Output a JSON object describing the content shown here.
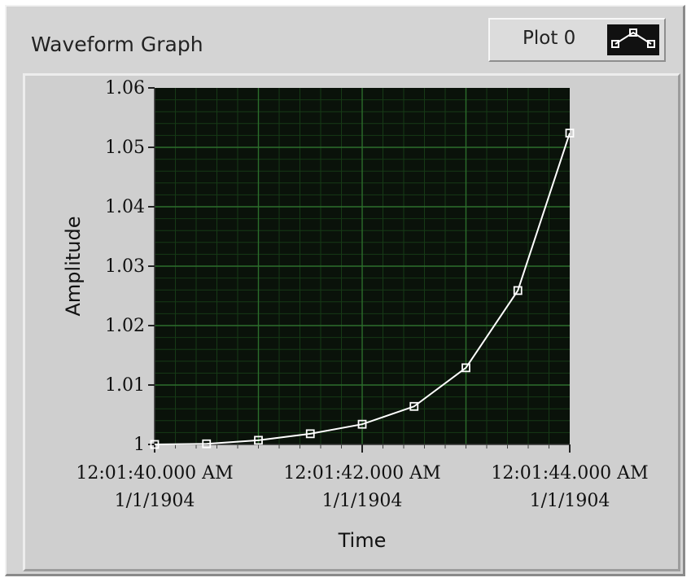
{
  "window": {
    "title": "Waveform Graph"
  },
  "legend": {
    "plot_label": "Plot 0",
    "icon": "line-with-square-markers-icon"
  },
  "colors": {
    "plot_background": "#0a120a",
    "grid_major": "#2c6e2c",
    "grid_minor": "#163a16",
    "series_line": "#ffffff",
    "panel": "#d4d4d4"
  },
  "chart_data": {
    "type": "line",
    "xlabel": "Time",
    "ylabel": "Amplitude",
    "xlim": [
      100,
      104
    ],
    "ylim": [
      1.0,
      1.06
    ],
    "x_ticks": [
      100,
      102,
      104
    ],
    "x_tick_labels": [
      [
        "12:01:40.000 AM",
        "1/1/1904"
      ],
      [
        "12:01:42.000 AM",
        "1/1/1904"
      ],
      [
        "12:01:44.000 AM",
        "1/1/1904"
      ]
    ],
    "y_ticks": [
      1.0,
      1.01,
      1.02,
      1.03,
      1.04,
      1.05,
      1.06
    ],
    "y_tick_labels": [
      "1",
      "1.01",
      "1.02",
      "1.03",
      "1.04",
      "1.05",
      "1.06"
    ],
    "grid": true,
    "series": [
      {
        "marker": "square",
        "x": [
          100.0,
          100.5,
          101.0,
          101.5,
          102.0,
          102.5,
          103.0,
          103.5,
          104.0
        ],
        "y": [
          1.0,
          1.0001,
          1.0007,
          1.0018,
          1.0034,
          1.0064,
          1.0129,
          1.0259,
          1.0524
        ]
      }
    ]
  }
}
